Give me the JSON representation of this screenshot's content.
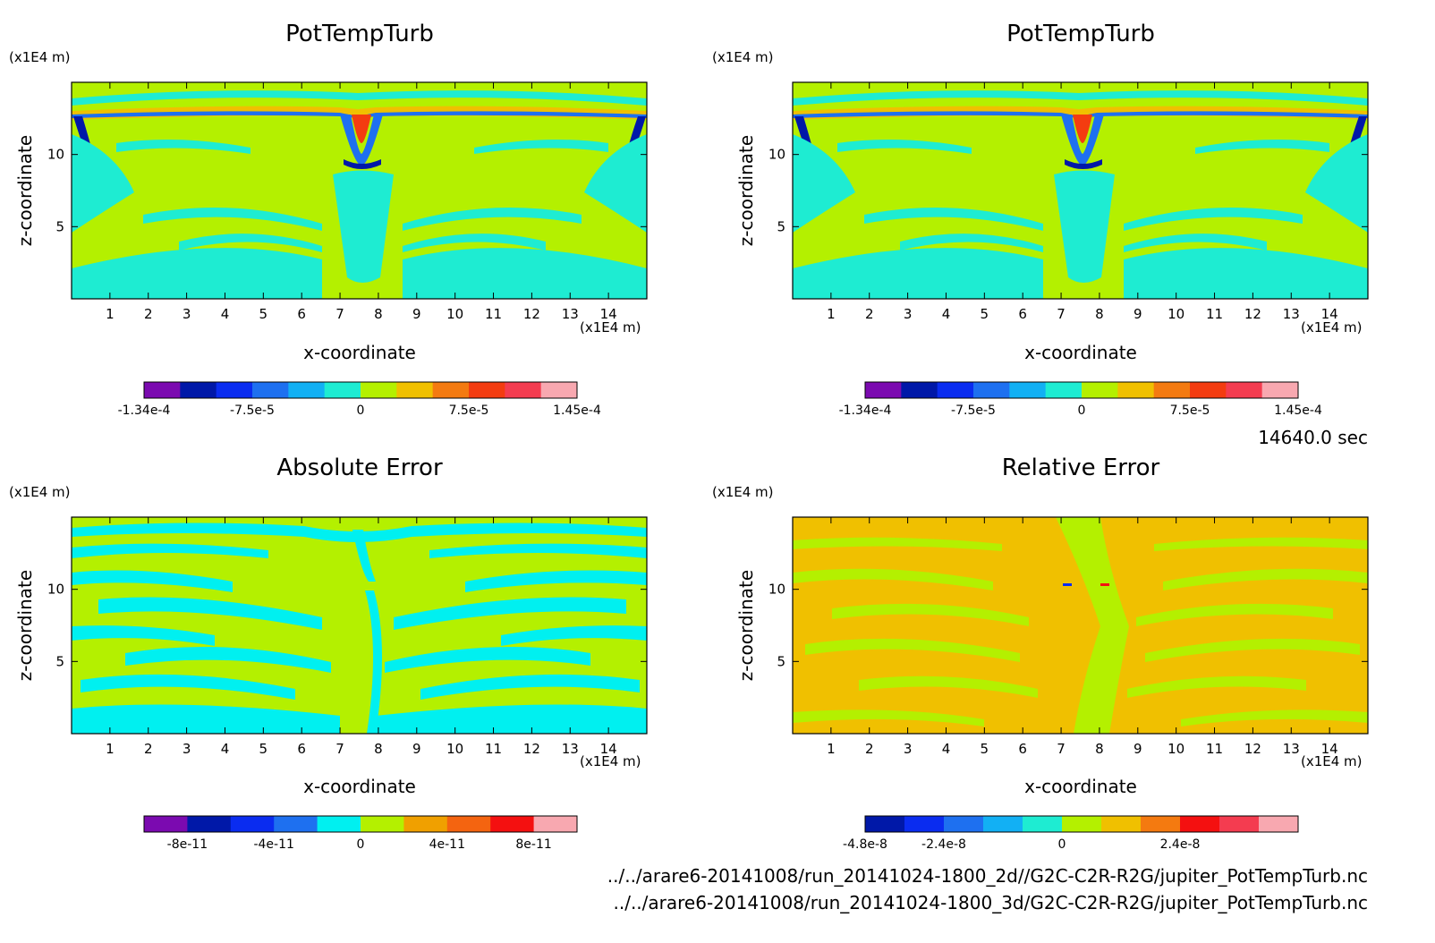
{
  "chart_data": [
    {
      "type": "heatmap",
      "title": "PotTempTurb",
      "xlabel": "x-coordinate",
      "ylabel": "z-coordinate",
      "x_unit": "(x1E4 m)",
      "y_unit": "(x1E4 m)",
      "xlim": [
        0,
        15
      ],
      "ylim": [
        0,
        15
      ],
      "x_ticks": [
        1,
        2,
        3,
        4,
        5,
        6,
        7,
        8,
        9,
        10,
        11,
        12,
        13,
        14
      ],
      "y_ticks": [
        5,
        10
      ],
      "colorbar": {
        "levels": 12,
        "colors": [
          "#7b0ab0",
          "#0018a8",
          "#0a2cf0",
          "#1e70f0",
          "#12b0f4",
          "#1eecd2",
          "#b4f000",
          "#f0c000",
          "#f47a10",
          "#f43c10",
          "#f43c50",
          "#f8a8b0"
        ],
        "ticks": [
          {
            "label": "-1.34e-4",
            "index": 0
          },
          {
            "label": "-7.5e-5",
            "index": 3
          },
          {
            "label": "0",
            "index": 6
          },
          {
            "label": "7.5e-5",
            "index": 9
          },
          {
            "label": "1.45e-4",
            "index": 12
          }
        ]
      }
    },
    {
      "type": "heatmap",
      "title": "PotTempTurb",
      "xlabel": "x-coordinate",
      "ylabel": "z-coordinate",
      "x_unit": "(x1E4 m)",
      "y_unit": "(x1E4 m)",
      "xlim": [
        0,
        15
      ],
      "ylim": [
        0,
        15
      ],
      "x_ticks": [
        1,
        2,
        3,
        4,
        5,
        6,
        7,
        8,
        9,
        10,
        11,
        12,
        13,
        14
      ],
      "y_ticks": [
        5,
        10
      ],
      "colorbar": {
        "levels": 12,
        "colors": [
          "#7b0ab0",
          "#0018a8",
          "#0a2cf0",
          "#1e70f0",
          "#12b0f4",
          "#1eecd2",
          "#b4f000",
          "#f0c000",
          "#f47a10",
          "#f43c10",
          "#f43c50",
          "#f8a8b0"
        ],
        "ticks": [
          {
            "label": "-1.34e-4",
            "index": 0
          },
          {
            "label": "-7.5e-5",
            "index": 3
          },
          {
            "label": "0",
            "index": 6
          },
          {
            "label": "7.5e-5",
            "index": 9
          },
          {
            "label": "1.45e-4",
            "index": 12
          }
        ]
      }
    },
    {
      "type": "heatmap",
      "title": "Absolute Error",
      "xlabel": "x-coordinate",
      "ylabel": "z-coordinate",
      "x_unit": "(x1E4 m)",
      "y_unit": "(x1E4 m)",
      "xlim": [
        0,
        15
      ],
      "ylim": [
        0,
        15
      ],
      "x_ticks": [
        1,
        2,
        3,
        4,
        5,
        6,
        7,
        8,
        9,
        10,
        11,
        12,
        13,
        14
      ],
      "y_ticks": [
        5,
        10
      ],
      "colorbar": {
        "levels": 10,
        "colors": [
          "#7b0ab0",
          "#0018a8",
          "#0a2cf0",
          "#1e70f0",
          "#00f0f0",
          "#b4f000",
          "#f0a000",
          "#f46410",
          "#f41010",
          "#f8a8b0"
        ],
        "ticks": [
          {
            "label": "-8e-11",
            "index": 1
          },
          {
            "label": "-4e-11",
            "index": 3
          },
          {
            "label": "0",
            "index": 5
          },
          {
            "label": "4e-11",
            "index": 7
          },
          {
            "label": "8e-11",
            "index": 9
          }
        ]
      }
    },
    {
      "type": "heatmap",
      "title": "Relative Error",
      "xlabel": "x-coordinate",
      "ylabel": "z-coordinate",
      "x_unit": "(x1E4 m)",
      "y_unit": "(x1E4 m)",
      "xlim": [
        0,
        15
      ],
      "ylim": [
        0,
        15
      ],
      "x_ticks": [
        1,
        2,
        3,
        4,
        5,
        6,
        7,
        8,
        9,
        10,
        11,
        12,
        13,
        14
      ],
      "y_ticks": [
        5,
        10
      ],
      "colorbar": {
        "levels": 11,
        "colors": [
          "#0018a8",
          "#0a2cf0",
          "#1e70f0",
          "#12b0f4",
          "#1eecd2",
          "#b4f000",
          "#f0c000",
          "#f47a10",
          "#f41010",
          "#f43c50",
          "#f8a8b0"
        ],
        "ticks": [
          {
            "label": "-4.8e-8",
            "index": 0
          },
          {
            "label": "-2.4e-8",
            "index": 2
          },
          {
            "label": "0",
            "index": 5
          },
          {
            "label": "2.4e-8",
            "index": 8
          }
        ]
      }
    }
  ],
  "time_label": "14640.0 sec",
  "file_paths": [
    "../../arare6-20141008/run_20141024-1800_2d//G2C-C2R-R2G/jupiter_PotTempTurb.nc",
    "../../arare6-20141008/run_20141024-1800_3d/G2C-C2R-R2G/jupiter_PotTempTurb.nc"
  ],
  "field_colors": {
    "pot_bg": "#b4f000",
    "pot_cyan": "#1eecd2",
    "pot_blue": "#1e70f0",
    "pot_navy": "#0018a8",
    "pot_orange": "#f0c000",
    "pot_red": "#f43c10",
    "abs_bg": "#b4f000",
    "abs_cyan": "#00f0f0",
    "rel_bg": "#b4f000",
    "rel_orange": "#f0c000"
  }
}
